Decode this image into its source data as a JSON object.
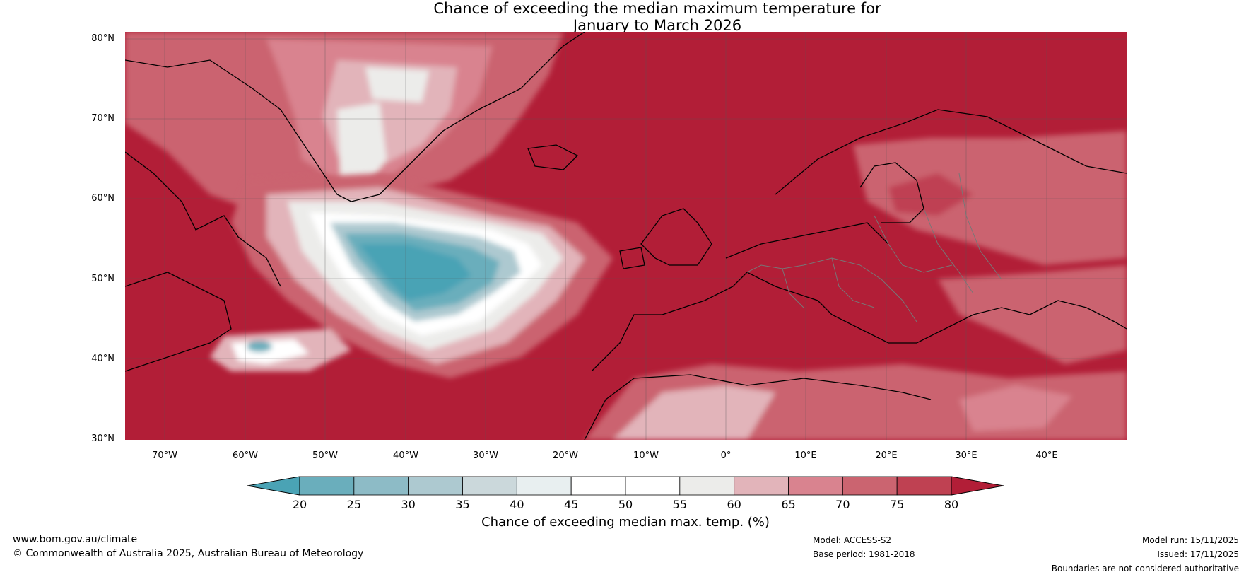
{
  "title_line1": "Chance of exceeding the median maximum temperature for",
  "title_line2": "January to March 2026",
  "lat_labels": [
    "80°N",
    "70°N",
    "60°N",
    "50°N",
    "40°N",
    "30°N"
  ],
  "lon_labels": [
    "70°W",
    "60°W",
    "50°W",
    "40°W",
    "30°W",
    "20°W",
    "10°W",
    "0°",
    "10°E",
    "20°E",
    "30°E",
    "40°E"
  ],
  "colorbar": {
    "ticks": [
      "20",
      "25",
      "30",
      "35",
      "40",
      "45",
      "50",
      "55",
      "60",
      "65",
      "70",
      "75",
      "80"
    ],
    "colors": [
      "#4aa3b5",
      "#6aaebc",
      "#8dbbc6",
      "#adc9d0",
      "#cbd8db",
      "#e8eff0",
      "#ffffff",
      "#ffffff",
      "#ececea",
      "#e2b4ba",
      "#d9838f",
      "#cb6470",
      "#bf4152",
      "#b21e37"
    ],
    "label": "Chance of exceeding median max. temp. (%)"
  },
  "footer": {
    "url": "www.bom.gov.au/climate",
    "copyright": "© Commonwealth of Australia 2025, Australian Bureau of Meteorology",
    "model": "Model: ACCESS-S2",
    "base_period": "Base period: 1981-2018",
    "model_run": "Model run: 15/11/2025",
    "issued": "Issued: 17/11/2025",
    "disclaimer": "Boundaries are not considered authoritative"
  }
}
